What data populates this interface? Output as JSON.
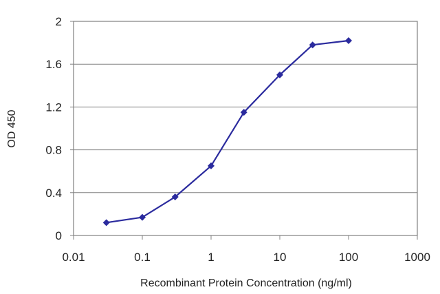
{
  "chart_data": {
    "type": "line",
    "title": "",
    "xlabel": "Recombinant Protein Concentration (ng/ml)",
    "ylabel": "OD 450",
    "x_scale": "log",
    "xlim": [
      0.01,
      1000
    ],
    "ylim": [
      0,
      2
    ],
    "x_ticks": [
      "0.01",
      "0.1",
      "1",
      "10",
      "100",
      "1000"
    ],
    "y_ticks": [
      "0",
      "0.4",
      "0.8",
      "1.2",
      "1.6",
      "2"
    ],
    "grid": "horizontal",
    "legend": "none",
    "series": [
      {
        "color": "#2b2b9e",
        "marker": "diamond",
        "points": [
          {
            "x": 0.03,
            "y": 0.12
          },
          {
            "x": 0.1,
            "y": 0.17
          },
          {
            "x": 0.3,
            "y": 0.36
          },
          {
            "x": 1,
            "y": 0.65
          },
          {
            "x": 3,
            "y": 1.15
          },
          {
            "x": 10,
            "y": 1.5
          },
          {
            "x": 30,
            "y": 1.78
          },
          {
            "x": 100,
            "y": 1.82
          }
        ]
      }
    ]
  }
}
